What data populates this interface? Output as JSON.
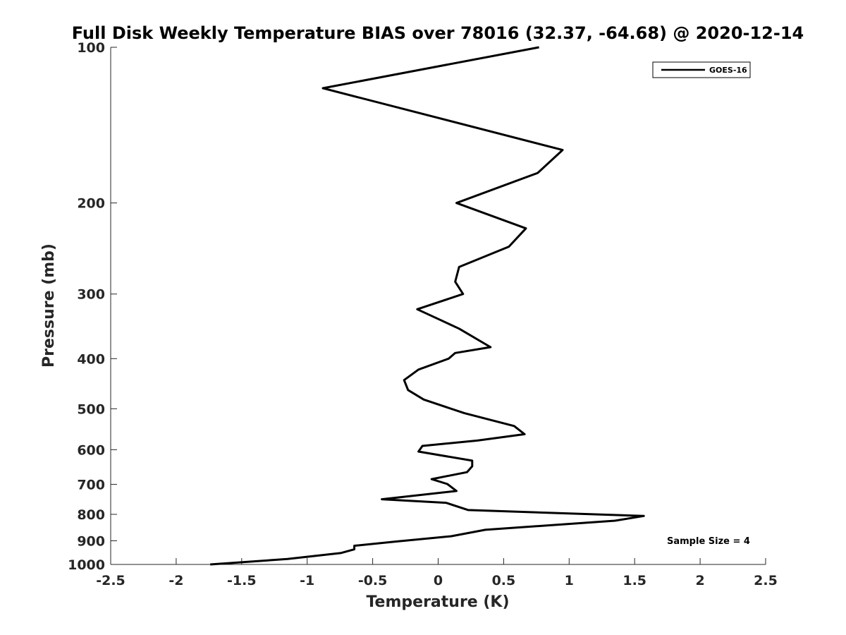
{
  "chart_data": {
    "type": "line",
    "title": "Full Disk Weekly Temperature BIAS over 78016 (32.37, -64.68) @ 2020-12-14",
    "xlabel": "Temperature (K)",
    "ylabel": "Pressure (mb)",
    "xlim": [
      -2.5,
      2.5
    ],
    "ylim": [
      1000,
      100
    ],
    "yscale": "log",
    "ydirection": "reverse",
    "x_ticks": [
      -2.5,
      -2,
      -1.5,
      -1,
      -0.5,
      0,
      0.5,
      1,
      1.5,
      2,
      2.5
    ],
    "x_tick_labels": [
      "-2.5",
      "-2",
      "-1.5",
      "-1",
      "-0.5",
      "0",
      "0.5",
      "1",
      "1.5",
      "2",
      "2.5"
    ],
    "y_ticks": [
      100,
      200,
      300,
      400,
      500,
      600,
      700,
      800,
      900,
      1000
    ],
    "y_tick_labels": [
      "100",
      "200",
      "300",
      "400",
      "500",
      "600",
      "700",
      "800",
      "900",
      "1000"
    ],
    "grid": false,
    "legend": {
      "position": "top-right",
      "entries": [
        "GOES-16"
      ]
    },
    "annotation": "Sample Size = 4",
    "series": [
      {
        "name": "GOES-16",
        "color": "#000000",
        "points": [
          [
            0.77,
            100
          ],
          [
            -0.88,
            120
          ],
          [
            0.95,
            158
          ],
          [
            0.76,
            175
          ],
          [
            0.14,
            200
          ],
          [
            0.67,
            224
          ],
          [
            0.54,
            243
          ],
          [
            0.16,
            266
          ],
          [
            0.13,
            284
          ],
          [
            0.19,
            300
          ],
          [
            -0.16,
            321
          ],
          [
            0.16,
            350
          ],
          [
            0.4,
            380
          ],
          [
            0.13,
            390
          ],
          [
            0.08,
            400
          ],
          [
            -0.15,
            420
          ],
          [
            -0.26,
            440
          ],
          [
            -0.23,
            460
          ],
          [
            -0.11,
            480
          ],
          [
            0.2,
            510
          ],
          [
            0.58,
            540
          ],
          [
            0.66,
            560
          ],
          [
            0.3,
            576
          ],
          [
            -0.12,
            590
          ],
          [
            -0.15,
            605
          ],
          [
            0.26,
            630
          ],
          [
            0.26,
            646
          ],
          [
            0.22,
            663
          ],
          [
            -0.05,
            684
          ],
          [
            0.07,
            699
          ],
          [
            0.14,
            721
          ],
          [
            -0.43,
            748
          ],
          [
            0.06,
            760
          ],
          [
            0.23,
            785
          ],
          [
            1.57,
            806
          ],
          [
            1.35,
            823
          ],
          [
            0.36,
            857
          ],
          [
            0.1,
            882
          ],
          [
            -0.32,
            903
          ],
          [
            -0.64,
            920
          ],
          [
            -0.64,
            935
          ],
          [
            -0.74,
            950
          ],
          [
            -1.15,
            976
          ],
          [
            -1.74,
            1000
          ]
        ]
      }
    ]
  }
}
